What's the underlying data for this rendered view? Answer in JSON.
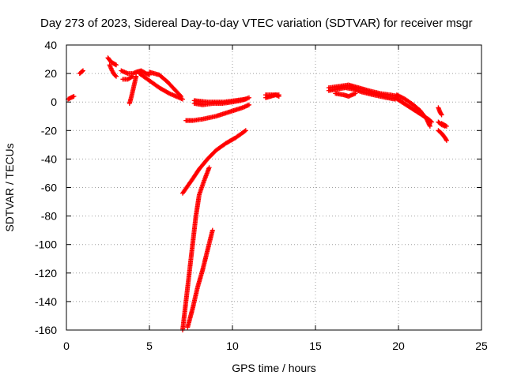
{
  "chart_data": {
    "type": "scatter",
    "title": "Day 273 of 2023, Sidereal Day-to-day VTEC variation (SDTVAR) for receiver msgr",
    "xlabel": "GPS time / hours",
    "ylabel": "SDTVAR / TECUs",
    "xlim": [
      0,
      25
    ],
    "ylim": [
      -160,
      40
    ],
    "xticks": [
      0,
      5,
      10,
      15,
      20,
      25
    ],
    "yticks": [
      -160,
      -140,
      -120,
      -100,
      -80,
      -60,
      -40,
      -20,
      0,
      20,
      40
    ],
    "grid": true,
    "marker": "+",
    "series": [
      {
        "name": "SDTVAR",
        "color": "#ff0000",
        "segments": [
          [
            [
              0.1,
              2
            ],
            [
              0.45,
              4
            ]
          ],
          [
            [
              0.8,
              20
            ],
            [
              1.0,
              22
            ]
          ],
          [
            [
              2.5,
              31
            ],
            [
              2.7,
              28
            ],
            [
              2.85,
              27
            ],
            [
              3.0,
              26
            ]
          ],
          [
            [
              2.6,
              26
            ],
            [
              2.75,
              22
            ],
            [
              2.9,
              19
            ],
            [
              3.0,
              18
            ]
          ],
          [
            [
              3.3,
              22
            ],
            [
              3.5,
              21
            ],
            [
              3.7,
              20
            ],
            [
              4.0,
              20
            ],
            [
              4.2,
              21
            ],
            [
              4.5,
              22
            ],
            [
              4.8,
              20
            ],
            [
              5.0,
              19
            ]
          ],
          [
            [
              3.8,
              -1
            ],
            [
              3.9,
              3
            ],
            [
              4.0,
              8
            ],
            [
              4.1,
              13
            ],
            [
              4.2,
              18
            ]
          ],
          [
            [
              3.4,
              16
            ],
            [
              3.7,
              16
            ],
            [
              4.0,
              18
            ]
          ],
          [
            [
              4.4,
              20
            ],
            [
              5.0,
              15
            ],
            [
              5.6,
              10
            ],
            [
              6.2,
              6
            ],
            [
              6.8,
              3
            ],
            [
              7.0,
              2
            ]
          ],
          [
            [
              5.0,
              21
            ],
            [
              5.6,
              19
            ],
            [
              6.1,
              14
            ],
            [
              6.5,
              9
            ],
            [
              6.9,
              4
            ]
          ],
          [
            [
              7.2,
              -13
            ],
            [
              7.6,
              -13
            ],
            [
              8.2,
              -12
            ],
            [
              9.0,
              -10
            ],
            [
              9.8,
              -7
            ],
            [
              10.6,
              -4
            ],
            [
              11.0,
              -2
            ]
          ],
          [
            [
              7.7,
              -1
            ],
            [
              8.2,
              -2
            ],
            [
              8.8,
              -1
            ],
            [
              9.4,
              -1
            ],
            [
              10.0,
              0
            ],
            [
              10.5,
              1
            ],
            [
              11.0,
              3
            ]
          ],
          [
            [
              7.7,
              1
            ],
            [
              8.5,
              0
            ],
            [
              9.5,
              0
            ],
            [
              10.8,
              2
            ]
          ],
          [
            [
              7.0,
              -64
            ],
            [
              7.3,
              -59
            ],
            [
              7.6,
              -54
            ],
            [
              8.0,
              -47
            ],
            [
              8.5,
              -40
            ],
            [
              9.0,
              -34
            ],
            [
              9.6,
              -29
            ],
            [
              10.2,
              -25
            ],
            [
              10.8,
              -20
            ]
          ],
          [
            [
              7.0,
              -160
            ],
            [
              7.2,
              -140
            ],
            [
              7.4,
              -120
            ],
            [
              7.6,
              -100
            ],
            [
              7.8,
              -80
            ],
            [
              8.0,
              -65
            ],
            [
              8.3,
              -55
            ],
            [
              8.6,
              -46
            ]
          ],
          [
            [
              7.3,
              -158
            ],
            [
              7.6,
              -145
            ],
            [
              7.9,
              -130
            ],
            [
              8.2,
              -118
            ],
            [
              8.5,
              -104
            ],
            [
              8.8,
              -90
            ]
          ],
          [
            [
              12.0,
              3
            ],
            [
              12.3,
              4
            ],
            [
              12.6,
              5
            ],
            [
              12.8,
              4
            ]
          ],
          [
            [
              12.0,
              5
            ],
            [
              12.8,
              5
            ]
          ],
          [
            [
              15.8,
              8
            ],
            [
              16.3,
              9
            ],
            [
              16.8,
              10
            ],
            [
              17.3,
              9
            ],
            [
              17.8,
              7
            ],
            [
              18.5,
              5
            ],
            [
              19.3,
              3
            ],
            [
              19.8,
              2
            ]
          ],
          [
            [
              15.8,
              10
            ],
            [
              16.4,
              11
            ],
            [
              17.0,
              12
            ],
            [
              17.6,
              10
            ],
            [
              18.2,
              8
            ],
            [
              18.9,
              6
            ],
            [
              19.5,
              5
            ],
            [
              20.0,
              4
            ]
          ],
          [
            [
              16.2,
              6
            ],
            [
              16.7,
              5
            ],
            [
              17.0,
              4
            ],
            [
              17.4,
              6
            ]
          ],
          [
            [
              19.8,
              3
            ],
            [
              20.2,
              0
            ],
            [
              20.6,
              -3
            ],
            [
              21.0,
              -6
            ],
            [
              21.4,
              -9
            ],
            [
              21.8,
              -12
            ],
            [
              22.0,
              -14
            ]
          ],
          [
            [
              19.9,
              5
            ],
            [
              20.4,
              2
            ],
            [
              20.9,
              -2
            ],
            [
              21.3,
              -6
            ],
            [
              21.7,
              -12
            ],
            [
              21.9,
              -17
            ]
          ],
          [
            [
              22.4,
              -4
            ],
            [
              22.5,
              -7
            ],
            [
              22.6,
              -9
            ]
          ],
          [
            [
              22.4,
              -14
            ],
            [
              22.6,
              -16
            ],
            [
              22.8,
              -17
            ]
          ],
          [
            [
              22.4,
              -20
            ],
            [
              22.6,
              -22
            ],
            [
              22.8,
              -25
            ],
            [
              22.9,
              -27
            ]
          ],
          [
            [
              22.6,
              -15
            ],
            [
              22.9,
              -17
            ]
          ]
        ]
      }
    ]
  }
}
